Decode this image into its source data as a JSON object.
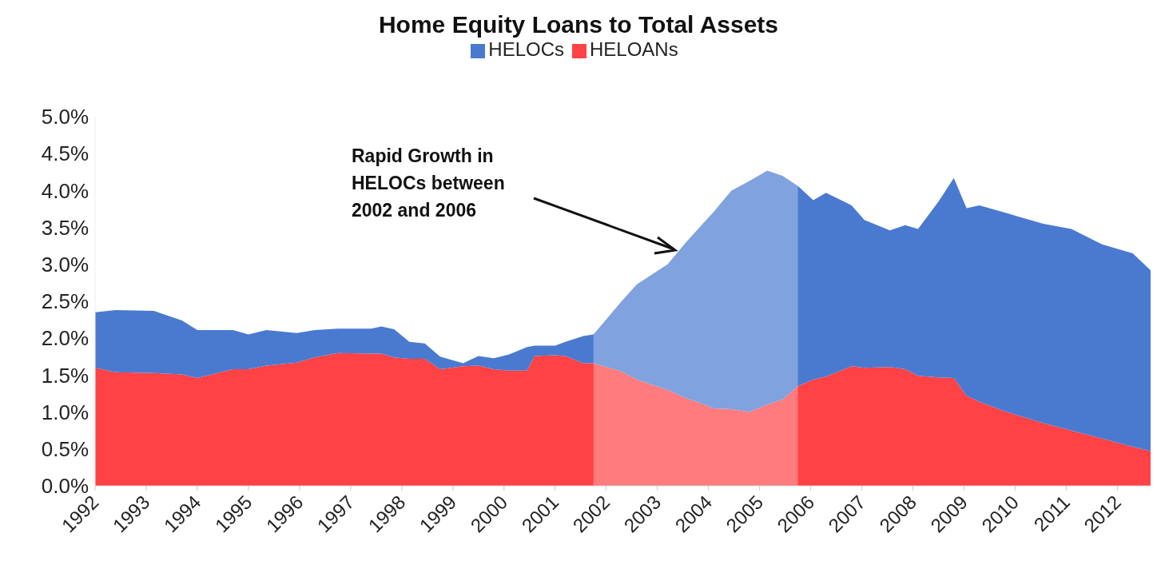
{
  "chart_data": {
    "type": "area",
    "title": "Home Equity Loans to Total Assets",
    "stacked": true,
    "legend": "top",
    "grid": false,
    "x": [
      1992.0,
      1992.4,
      1993.15,
      1993.7,
      1994.0,
      1994.7,
      1995.0,
      1995.35,
      1995.95,
      1996.3,
      1996.75,
      1997.4,
      1997.6,
      1997.85,
      1998.15,
      1998.45,
      1998.75,
      1999.2,
      1999.5,
      1999.8,
      2000.1,
      2000.45,
      2000.6,
      2001.0,
      2001.2,
      2001.55,
      2001.75,
      2002.3,
      2002.6,
      2003.2,
      2003.55,
      2003.85,
      2004.1,
      2004.45,
      2004.8,
      2005.15,
      2005.45,
      2005.75,
      2006.05,
      2006.3,
      2006.8,
      2007.05,
      2007.55,
      2007.85,
      2008.1,
      2008.5,
      2008.8,
      2009.05,
      2009.3,
      2009.8,
      2010.55,
      2011.1,
      2011.7,
      2012.3,
      2012.65
    ],
    "series": [
      {
        "name": "HELOANs",
        "color": "#ff4245",
        "values": [
          1.6,
          1.54,
          1.53,
          1.51,
          1.46,
          1.58,
          1.58,
          1.63,
          1.67,
          1.74,
          1.8,
          1.79,
          1.79,
          1.74,
          1.72,
          1.72,
          1.58,
          1.62,
          1.63,
          1.58,
          1.56,
          1.56,
          1.76,
          1.77,
          1.76,
          1.66,
          1.66,
          1.55,
          1.44,
          1.3,
          1.19,
          1.12,
          1.05,
          1.04,
          1.0,
          1.1,
          1.17,
          1.35,
          1.44,
          1.48,
          1.62,
          1.6,
          1.61,
          1.58,
          1.49,
          1.47,
          1.46,
          1.22,
          1.14,
          1.01,
          0.85,
          0.75,
          0.64,
          0.53,
          0.47
        ]
      },
      {
        "name": "HELOCs",
        "color": "#4a7ad0",
        "values": [
          0.75,
          0.84,
          0.84,
          0.73,
          0.65,
          0.53,
          0.47,
          0.48,
          0.4,
          0.37,
          0.33,
          0.34,
          0.37,
          0.38,
          0.23,
          0.21,
          0.17,
          0.04,
          0.13,
          0.15,
          0.22,
          0.32,
          0.14,
          0.13,
          0.19,
          0.37,
          0.39,
          0.95,
          1.29,
          1.7,
          2.1,
          2.4,
          2.66,
          2.96,
          3.13,
          3.17,
          3.03,
          2.71,
          2.43,
          2.49,
          2.18,
          2.0,
          1.85,
          1.95,
          1.99,
          2.38,
          2.71,
          2.54,
          2.66,
          2.69,
          2.7,
          2.73,
          2.63,
          2.62,
          2.45
        ]
      }
    ],
    "xlim": [
      1992,
      2012.65
    ],
    "xticks": [
      1992,
      1993,
      1994,
      1995,
      1996,
      1997,
      1998,
      1999,
      2000,
      2001,
      2002,
      2003,
      2004,
      2005,
      2006,
      2007,
      2008,
      2009,
      2010,
      2011,
      2012
    ],
    "ylim": [
      0,
      5
    ],
    "yticks": [
      {
        "value": 0,
        "label": "0.0%"
      },
      {
        "value": 0.5,
        "label": "0.5%"
      },
      {
        "value": 1,
        "label": "1.0%"
      },
      {
        "value": 1.5,
        "label": "1.5%"
      },
      {
        "value": 2,
        "label": "2.0%"
      },
      {
        "value": 2.5,
        "label": "2.5%"
      },
      {
        "value": 3,
        "label": "3.0%"
      },
      {
        "value": 3.5,
        "label": "3.5%"
      },
      {
        "value": 4,
        "label": "4.0%"
      },
      {
        "value": 4.5,
        "label": "4.5%"
      },
      {
        "value": 5,
        "label": "5.0%"
      }
    ],
    "bands": [
      {
        "axis": "x",
        "from": 2001.75,
        "to": 2005.75,
        "color": "#ffffff"
      }
    ],
    "annotations": [
      "Rapid Growth in\nHELOCs between\n2002 and 2006"
    ]
  }
}
